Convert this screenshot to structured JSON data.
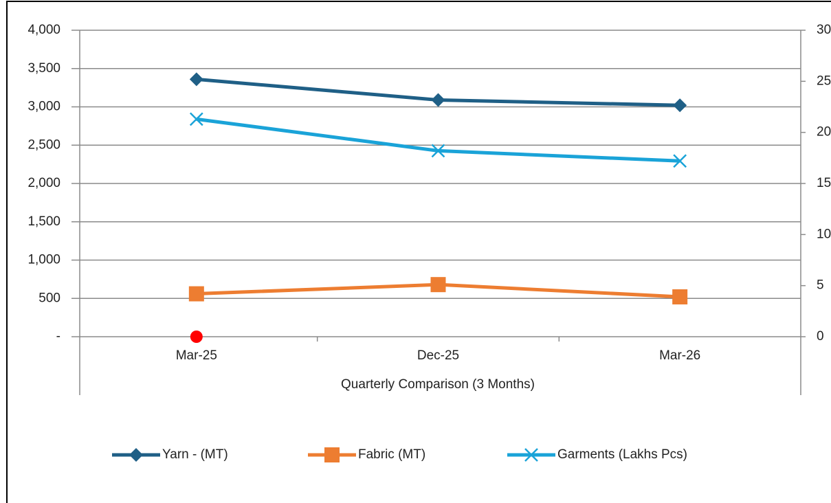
{
  "chart_data": {
    "type": "line",
    "x_label": "Quarterly Comparison (3 Months)",
    "categories": [
      "Mar-25",
      "Dec-25",
      "Mar-26"
    ],
    "series": [
      {
        "name": "Yarn - (MT)",
        "color": "#1f5f86",
        "marker": "diamond",
        "values": [
          3360,
          3090,
          3020
        ]
      },
      {
        "name": "Fabric (MT)",
        "color": "#ed7d31",
        "marker": "square",
        "values": [
          560,
          680,
          520
        ]
      },
      {
        "name": "Garments (Lakhs Pcs)",
        "color": "#1aa3d8",
        "marker": "x",
        "axis": "y2",
        "values": [
          21.3,
          18.2,
          17.2
        ]
      }
    ],
    "ylim": [
      0,
      4000
    ],
    "yticks": [
      {
        "value": 0,
        "label": "-"
      },
      500,
      {
        "value": 1000,
        "label": "1,000"
      },
      {
        "value": 1500,
        "label": "1,500"
      },
      {
        "value": 2000,
        "label": "2,000"
      },
      {
        "value": 2500,
        "label": "2,500"
      },
      {
        "value": 3000,
        "label": "3,000"
      },
      {
        "value": 3500,
        "label": "3,500"
      },
      {
        "value": 4000,
        "label": "4,000"
      }
    ],
    "y2lim": [
      0,
      30
    ],
    "y2ticks": [
      0,
      5,
      10,
      15,
      20,
      25,
      30
    ],
    "grid": true,
    "legend": "bottom"
  }
}
